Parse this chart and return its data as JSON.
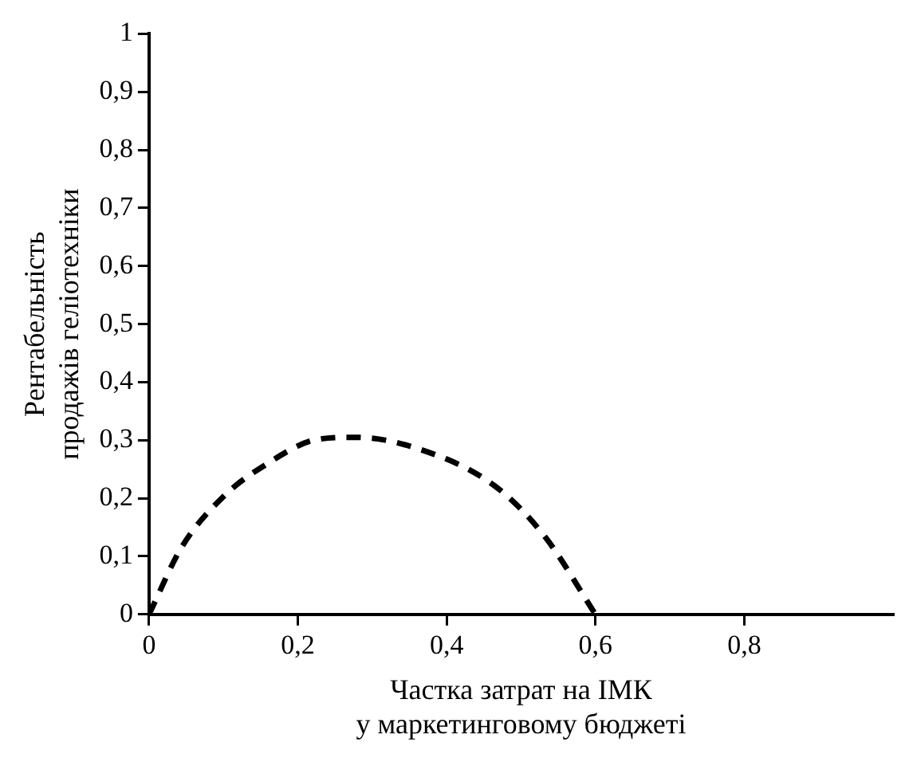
{
  "chart_data": {
    "type": "line",
    "xlabel": "Частка затрат на ІМК\nу маркетинговому бюджеті",
    "ylabel": "Рентабельність\nпродажів геліотехніки",
    "x": [
      0,
      0.044,
      0.1,
      0.157,
      0.225,
      0.277,
      0.36,
      0.465,
      0.532,
      0.6
    ],
    "series": [
      {
        "color": "#000000",
        "values": [
          0,
          0.116,
          0.203,
          0.258,
          0.301,
          0.305,
          0.286,
          0.221,
          0.134,
          0
        ]
      }
    ],
    "xlim": [
      0,
      1
    ],
    "xticks": [
      0,
      {
        "value": 0.2,
        "label": "0,2"
      },
      {
        "value": 0.4,
        "label": "0,4"
      },
      {
        "value": 0.6,
        "label": "0,6"
      },
      {
        "value": 0.8,
        "label": "0,8"
      }
    ],
    "ylim": [
      0,
      1
    ],
    "yticks": [
      0,
      {
        "value": 0.1,
        "label": "0,1"
      },
      {
        "value": 0.2,
        "label": "0,2"
      },
      {
        "value": 0.3,
        "label": "0,3"
      },
      {
        "value": 0.4,
        "label": "0,4"
      },
      {
        "value": 0.5,
        "label": "0,5"
      },
      {
        "value": 0.6,
        "label": "0,6"
      },
      {
        "value": 0.7,
        "label": "0,7"
      },
      {
        "value": 0.8,
        "label": "0,8"
      },
      {
        "value": 0.9,
        "label": "0,9"
      },
      {
        "value": 1,
        "label": "1"
      }
    ],
    "grid": false,
    "legend": false,
    "marker": "none",
    "line_style": "dashed"
  }
}
